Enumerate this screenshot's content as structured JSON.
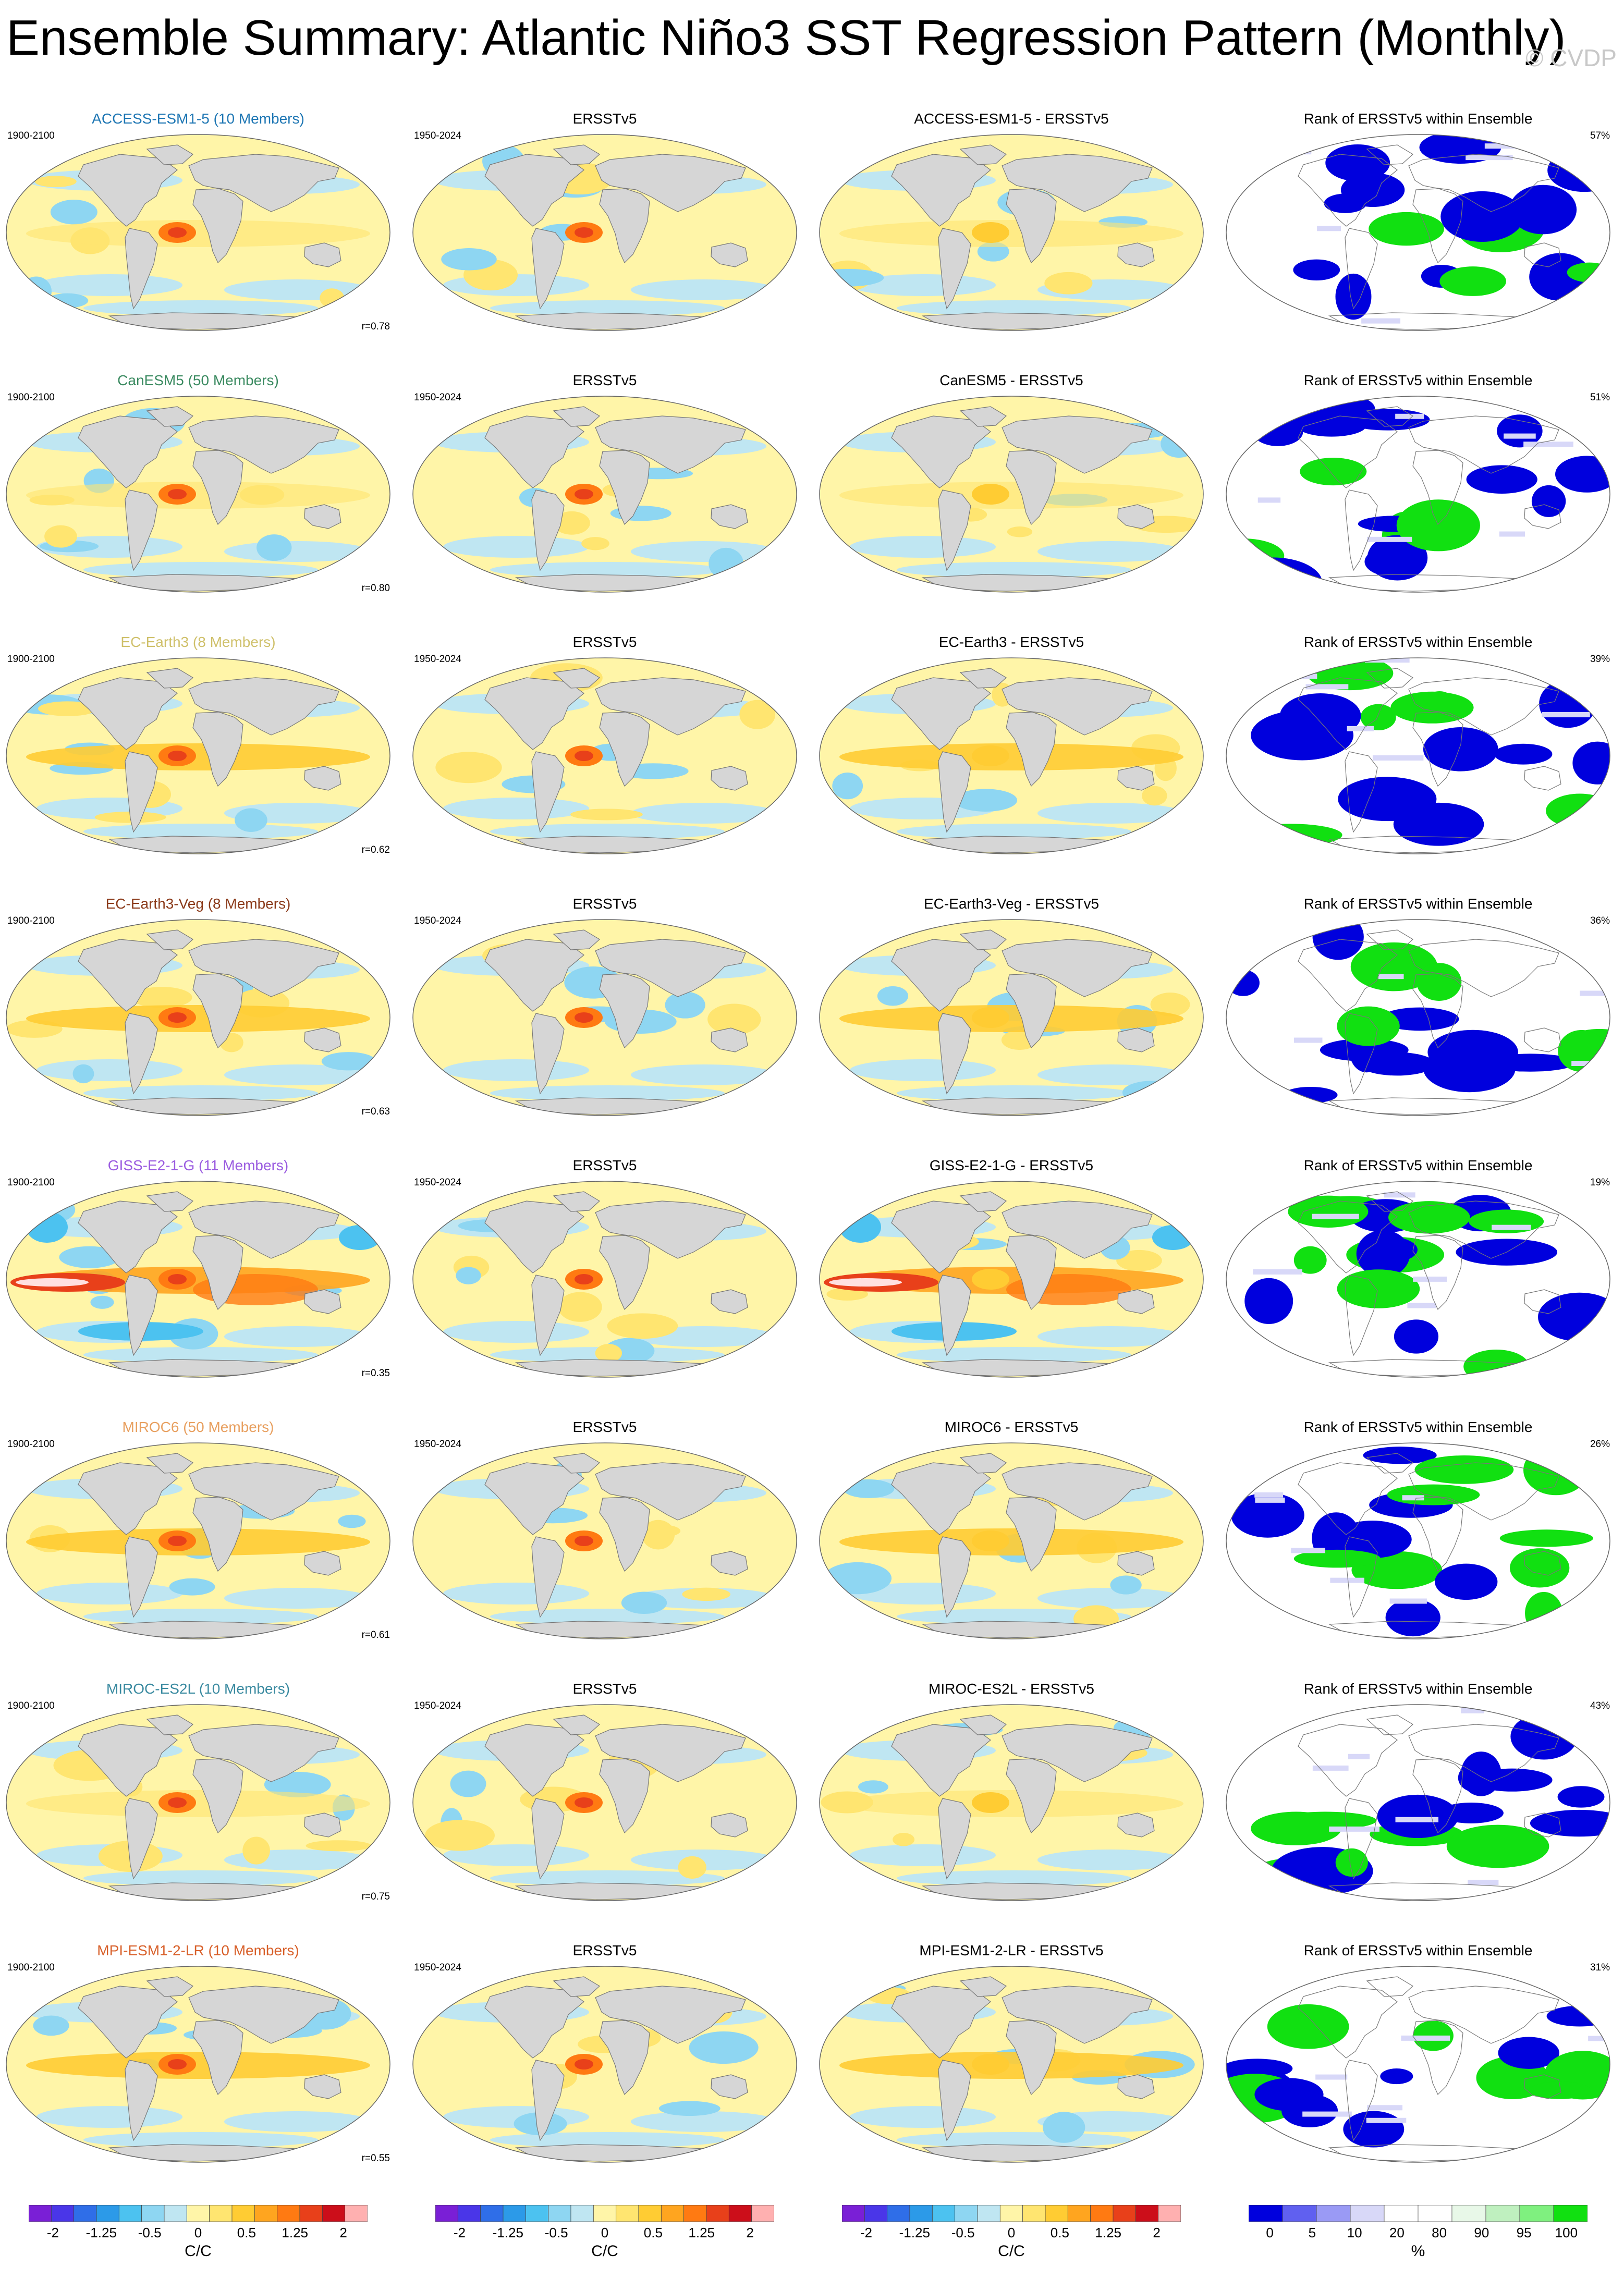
{
  "title": "Ensemble Summary: Atlantic Niño3 SST Regression Pattern (Monthly)",
  "watermark": "© CVDP",
  "column_titles": {
    "obs": "ERSSTv5",
    "rank": "Rank of ERSSTv5 within Ensemble"
  },
  "model_period": "1900-2100",
  "obs_period": "1950-2024",
  "rows": [
    {
      "model": "ACCESS-ESM1-5 (10 Members)",
      "diff": "ACCESS-ESM1-5 - ERSSTv5",
      "r": "r=0.78",
      "pct": "57%",
      "color": "#1f77b4",
      "style": "mild"
    },
    {
      "model": "CanESM5 (50 Members)",
      "diff": "CanESM5 - ERSSTv5",
      "r": "r=0.80",
      "pct": "51%",
      "color": "#3a8a60",
      "style": "mild"
    },
    {
      "model": "EC-Earth3 (8 Members)",
      "diff": "EC-Earth3 - ERSSTv5",
      "r": "r=0.62",
      "pct": "39%",
      "color": "#cfc06a",
      "style": "warm"
    },
    {
      "model": "EC-Earth3-Veg (8 Members)",
      "diff": "EC-Earth3-Veg - ERSSTv5",
      "r": "r=0.63",
      "pct": "36%",
      "color": "#8b3a1a",
      "style": "warm"
    },
    {
      "model": "GISS-E2-1-G (11 Members)",
      "diff": "GISS-E2-1-G - ERSSTv5",
      "r": "r=0.35",
      "pct": "19%",
      "color": "#9a5be0",
      "style": "strong"
    },
    {
      "model": "MIROC6 (50 Members)",
      "diff": "MIROC6 - ERSSTv5",
      "r": "r=0.61",
      "pct": "26%",
      "color": "#e8a060",
      "style": "warm"
    },
    {
      "model": "MIROC-ES2L (10 Members)",
      "diff": "MIROC-ES2L - ERSSTv5",
      "r": "r=0.75",
      "pct": "43%",
      "color": "#3a8aa0",
      "style": "mild"
    },
    {
      "model": "MPI-ESM1-2-LR (10 Members)",
      "diff": "MPI-ESM1-2-LR - ERSSTv5",
      "r": "r=0.55",
      "pct": "31%",
      "color": "#d8602a",
      "style": "warm"
    }
  ],
  "sst_colorbar": {
    "colors": [
      "#7a1fd6",
      "#4a36e8",
      "#2f6ee8",
      "#2c9ae8",
      "#4cc2f0",
      "#8ed6f2",
      "#bfe6f2",
      "#fff5a8",
      "#ffe570",
      "#ffcc33",
      "#ffa51f",
      "#ff7a12",
      "#e8401a",
      "#cc0e1a",
      "#ffb0b0"
    ],
    "ticks": [
      "-2",
      "-1.25",
      "-0.5",
      "0",
      "0.5",
      "1.25",
      "2"
    ],
    "unit": "C/C"
  },
  "rank_colorbar": {
    "colors": [
      "#0000dd",
      "#6060f0",
      "#9a9af5",
      "#d8d8f8",
      "#ffffff",
      "#ffffff",
      "#e8f8e8",
      "#bff0bf",
      "#7ff07f",
      "#11e011"
    ],
    "ticks": [
      "0",
      "5",
      "10",
      "20",
      "80",
      "90",
      "95",
      "100"
    ],
    "unit": "%"
  }
}
